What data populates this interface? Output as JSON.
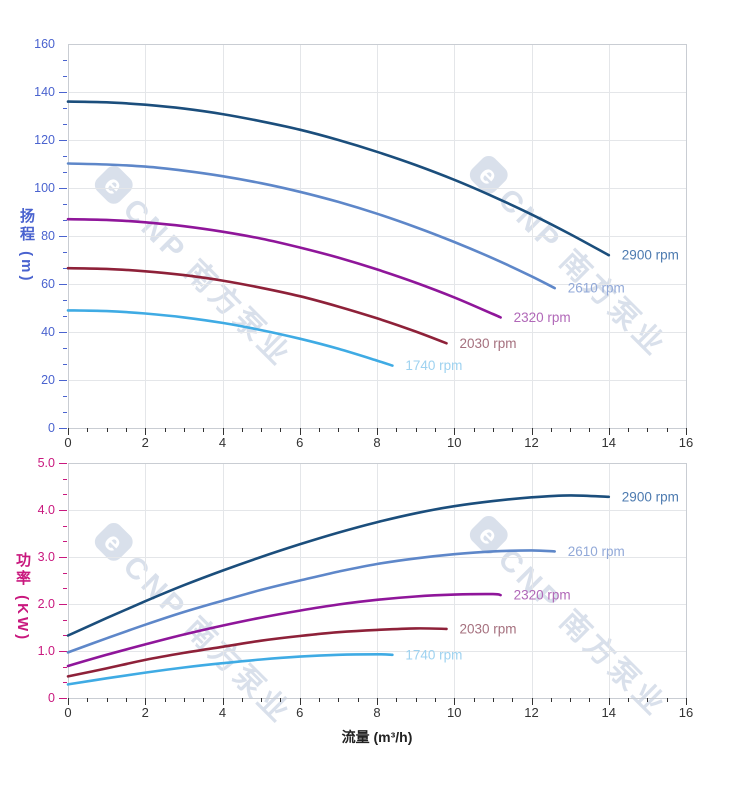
{
  "watermark": {
    "logo": "e",
    "text": "CNP 南方泵业"
  },
  "chart_data": [
    {
      "type": "line",
      "title": "",
      "xlabel": "",
      "ylabel": "扬程 (m)",
      "xlim": [
        0,
        16
      ],
      "ylim": [
        0,
        160
      ],
      "x_tick_step": 2,
      "x_minor_step": 0.5,
      "y_tick_step": 20,
      "y_minor_step": 6.667,
      "x_tick_labels": [
        "0",
        "2",
        "4",
        "6",
        "8",
        "10",
        "12",
        "14",
        "16"
      ],
      "y_tick_labels": [
        "0",
        "20",
        "40",
        "60",
        "80",
        "100",
        "120",
        "140",
        "160"
      ],
      "grid": true,
      "legend_position": "right-of-curve-end",
      "axis_color": "#4a63cf",
      "x_axis_color": "#333333",
      "series": [
        {
          "name": "2900 rpm",
          "color": "#1b4e7c",
          "label_color": "#4d7bb0",
          "points": [
            [
              0,
              136
            ],
            [
              1,
              135.7
            ],
            [
              2,
              134.7
            ],
            [
              3,
              133.1
            ],
            [
              4,
              130.8
            ],
            [
              5,
              127.8
            ],
            [
              6,
              124.3
            ],
            [
              7,
              120
            ],
            [
              8,
              115.1
            ],
            [
              9,
              109.6
            ],
            [
              10,
              103.4
            ],
            [
              11,
              96.5
            ],
            [
              12,
              89
            ],
            [
              13,
              80.8
            ],
            [
              14,
              72
            ]
          ]
        },
        {
          "name": "2610 rpm",
          "color": "#5e87c9",
          "label_color": "#92a9d8",
          "points": [
            [
              0,
              110.2
            ],
            [
              1,
              109.8
            ],
            [
              2,
              108.9
            ],
            [
              3,
              107.2
            ],
            [
              4,
              104.9
            ],
            [
              5,
              102
            ],
            [
              6,
              98.4
            ],
            [
              7,
              94.2
            ],
            [
              8,
              89.3
            ],
            [
              9,
              83.7
            ],
            [
              10,
              77.5
            ],
            [
              11,
              70.7
            ],
            [
              12,
              63.2
            ],
            [
              12.6,
              58.3
            ]
          ]
        },
        {
          "name": "2320 rpm",
          "color": "#8f169a",
          "label_color": "#b168b8",
          "points": [
            [
              0,
              87
            ],
            [
              1,
              86.7
            ],
            [
              2,
              85.7
            ],
            [
              3,
              84.1
            ],
            [
              4,
              81.8
            ],
            [
              5,
              78.9
            ],
            [
              6,
              75.2
            ],
            [
              7,
              71
            ],
            [
              8,
              66.1
            ],
            [
              9,
              60.6
            ],
            [
              10,
              54.4
            ],
            [
              11,
              47.5
            ],
            [
              11.2,
              46.1
            ]
          ]
        },
        {
          "name": "2030 rpm",
          "color": "#8e2139",
          "label_color": "#a5707e",
          "points": [
            [
              0,
              66.6
            ],
            [
              1,
              66.3
            ],
            [
              2,
              65.3
            ],
            [
              3,
              63.7
            ],
            [
              4,
              61.4
            ],
            [
              5,
              58.4
            ],
            [
              6,
              54.9
            ],
            [
              7,
              50.6
            ],
            [
              8,
              45.7
            ],
            [
              9,
              40.2
            ],
            [
              9.8,
              35.3
            ]
          ]
        },
        {
          "name": "1740 rpm",
          "color": "#3fabe4",
          "label_color": "#9ed2f0",
          "points": [
            [
              0,
              49
            ],
            [
              1,
              48.7
            ],
            [
              2,
              47.7
            ],
            [
              3,
              46.1
            ],
            [
              4,
              43.8
            ],
            [
              5,
              40.8
            ],
            [
              6,
              37.2
            ],
            [
              7,
              33
            ],
            [
              8,
              28.1
            ],
            [
              8.4,
              26
            ]
          ]
        }
      ]
    },
    {
      "type": "line",
      "title": "",
      "xlabel": "流量 (m³/h)",
      "ylabel": "功率 (KW)",
      "xlim": [
        0,
        16
      ],
      "ylim": [
        0,
        5
      ],
      "x_tick_step": 2,
      "x_minor_step": 0.5,
      "y_tick_step": 1,
      "y_minor_step": 0.3333,
      "x_tick_labels": [
        "0",
        "2",
        "4",
        "6",
        "8",
        "10",
        "12",
        "14",
        "16"
      ],
      "y_tick_labels": [
        "0",
        "1.0",
        "2.0",
        "3.0",
        "4.0",
        "5.0"
      ],
      "grid": true,
      "legend_position": "right-of-curve-end",
      "axis_color": "#c9187e",
      "x_axis_color": "#333333",
      "series": [
        {
          "name": "2900 rpm",
          "color": "#1b4e7c",
          "label_color": "#4d7bb0",
          "points": [
            [
              0,
              1.33
            ],
            [
              1,
              1.7
            ],
            [
              2,
              2.06
            ],
            [
              3,
              2.4
            ],
            [
              4,
              2.71
            ],
            [
              5,
              3
            ],
            [
              6,
              3.27
            ],
            [
              7,
              3.52
            ],
            [
              8,
              3.74
            ],
            [
              9,
              3.93
            ],
            [
              10,
              4.08
            ],
            [
              11,
              4.19
            ],
            [
              12,
              4.27
            ],
            [
              13,
              4.31
            ],
            [
              14,
              4.28
            ]
          ]
        },
        {
          "name": "2610 rpm",
          "color": "#5e87c9",
          "label_color": "#92a9d8",
          "points": [
            [
              0,
              0.97
            ],
            [
              1,
              1.27
            ],
            [
              2,
              1.56
            ],
            [
              3,
              1.83
            ],
            [
              4,
              2.07
            ],
            [
              5,
              2.3
            ],
            [
              6,
              2.5
            ],
            [
              7,
              2.69
            ],
            [
              8,
              2.85
            ],
            [
              9,
              2.97
            ],
            [
              10,
              3.06
            ],
            [
              11,
              3.12
            ],
            [
              12,
              3.14
            ],
            [
              12.6,
              3.12
            ]
          ]
        },
        {
          "name": "2320 rpm",
          "color": "#8f169a",
          "label_color": "#b168b8",
          "points": [
            [
              0,
              0.68
            ],
            [
              1,
              0.92
            ],
            [
              2,
              1.14
            ],
            [
              3,
              1.35
            ],
            [
              4,
              1.54
            ],
            [
              5,
              1.71
            ],
            [
              6,
              1.86
            ],
            [
              7,
              1.99
            ],
            [
              8,
              2.09
            ],
            [
              9,
              2.16
            ],
            [
              10,
              2.2
            ],
            [
              11,
              2.21
            ],
            [
              11.2,
              2.19
            ]
          ]
        },
        {
          "name": "2030 rpm",
          "color": "#8e2139",
          "label_color": "#a5707e",
          "points": [
            [
              0,
              0.46
            ],
            [
              1,
              0.63
            ],
            [
              2,
              0.81
            ],
            [
              3,
              0.96
            ],
            [
              4,
              1.09
            ],
            [
              5,
              1.22
            ],
            [
              6,
              1.32
            ],
            [
              7,
              1.4
            ],
            [
              8,
              1.45
            ],
            [
              9,
              1.48
            ],
            [
              9.8,
              1.47
            ]
          ]
        },
        {
          "name": "1740 rpm",
          "color": "#3fabe4",
          "label_color": "#9ed2f0",
          "points": [
            [
              0,
              0.29
            ],
            [
              1,
              0.42
            ],
            [
              2,
              0.54
            ],
            [
              3,
              0.65
            ],
            [
              4,
              0.74
            ],
            [
              5,
              0.82
            ],
            [
              6,
              0.88
            ],
            [
              7,
              0.92
            ],
            [
              8,
              0.93
            ],
            [
              8.4,
              0.92
            ]
          ]
        }
      ]
    }
  ]
}
